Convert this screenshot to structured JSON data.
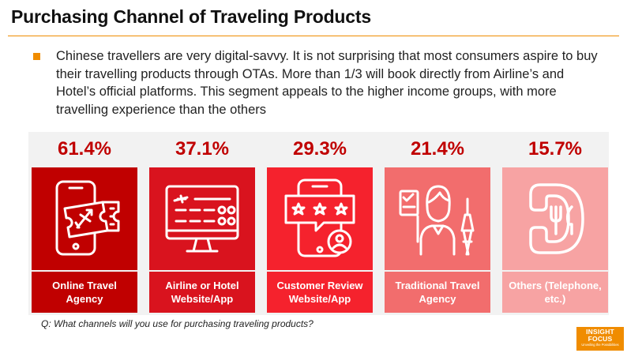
{
  "slide": {
    "title": "Purchasing Channel of Traveling Products",
    "paragraph": "Chinese travellers are very digital-savvy. It is not surprising that most consumers aspire to buy their travelling products through OTAs. More than 1/3 will book directly from Airline’s and Hotel’s official platforms. This segment appeals to the higher income groups, with more travelling experience than the others",
    "footnote": "Q: What channels will you use for purchasing traveling products?"
  },
  "channels": [
    {
      "percent": "61.4%",
      "label": "Online Travel Agency",
      "icon": "phone-plane-ticket-icon",
      "color": "#c00000"
    },
    {
      "percent": "37.1%",
      "label": "Airline or Hotel Website/App",
      "icon": "flight-board-monitor-icon",
      "color": "#d9131e"
    },
    {
      "percent": "29.3%",
      "label": "Customer Review Website/App",
      "icon": "review-stars-icon",
      "color": "#f5222d"
    },
    {
      "percent": "21.4%",
      "label": "Traditional Travel Agency",
      "icon": "travel-agent-icon",
      "color": "#f26d6d"
    },
    {
      "percent": "15.7%",
      "label": "Others (Telephone, etc.)",
      "icon": "telephone-restaurant-icon",
      "color": "#f7a3a3"
    }
  ],
  "chart_data": {
    "type": "bar",
    "categories": [
      "Online Travel Agency",
      "Airline or Hotel Website/App",
      "Customer Review Website/App",
      "Traditional Travel Agency",
      "Others (Telephone, etc.)"
    ],
    "values": [
      61.4,
      37.1,
      29.3,
      21.4,
      15.7
    ],
    "title": "Purchasing Channel of Traveling Products"
  },
  "logo": {
    "line1": "INSIGHT",
    "line2": "FOCUS",
    "tagline": "Unveiling the Possibilities"
  }
}
